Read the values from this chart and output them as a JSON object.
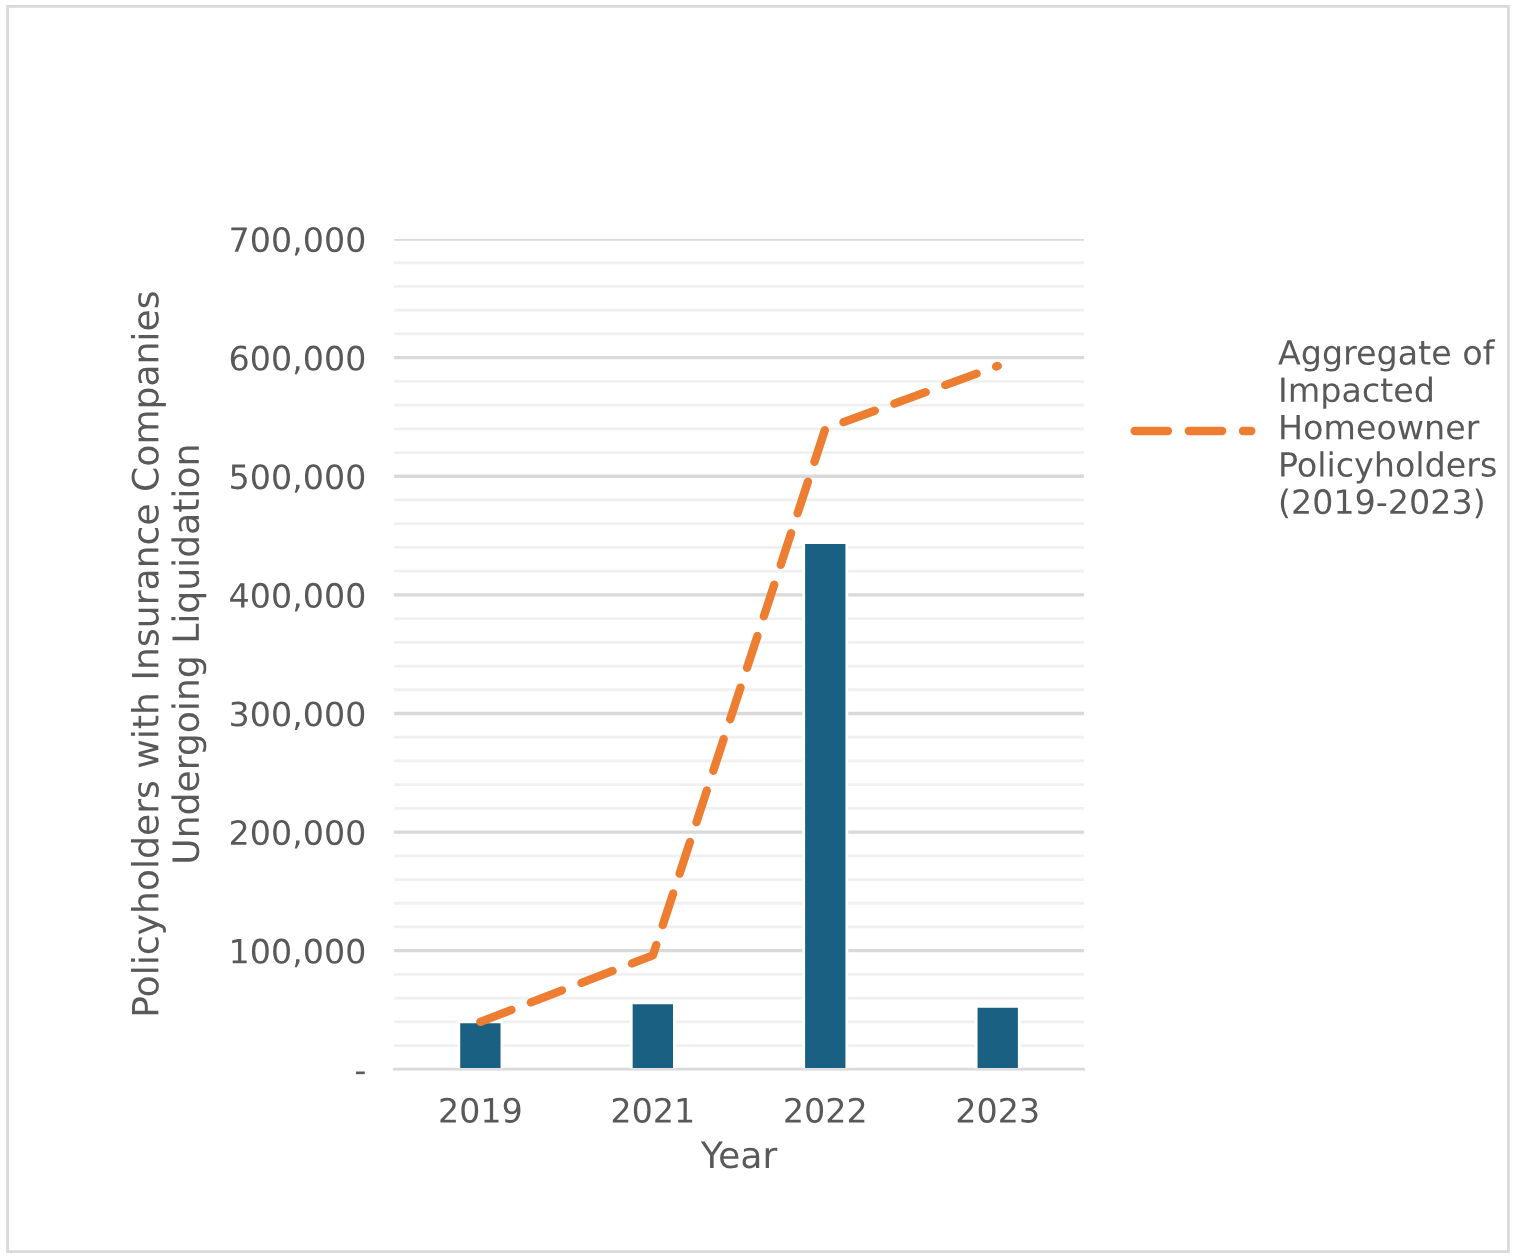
{
  "chart_data": {
    "type": "bar",
    "xlabel": "Year",
    "ylabel": "Policyholders with Insurance Companies\nUndergoing Liquidation",
    "categories": [
      "2019",
      "2021",
      "2022",
      "2023"
    ],
    "series": [
      {
        "color": "#1a6083",
        "values": [
          40000,
          56000,
          444000,
          53000
        ]
      },
      {
        "type": "line",
        "name": "Aggregate of\nImpacted\nHomeowner\nPolicyholders\n(2019-2023)",
        "color": "#ed7d31",
        "line_style": "dashed",
        "values": [
          40000,
          96000,
          540000,
          593000
        ]
      }
    ],
    "ylim": [
      0,
      700000
    ],
    "yticks": [
      {
        "value": 0,
        "label": "-"
      },
      {
        "value": 20000,
        "label": null
      },
      {
        "value": 40000,
        "label": null
      },
      {
        "value": 60000,
        "label": null
      },
      {
        "value": 80000,
        "label": null
      },
      {
        "value": 100000,
        "label": "100,000"
      },
      {
        "value": 120000,
        "label": null
      },
      {
        "value": 140000,
        "label": null
      },
      {
        "value": 160000,
        "label": null
      },
      {
        "value": 180000,
        "label": null
      },
      {
        "value": 200000,
        "label": "200,000"
      },
      {
        "value": 220000,
        "label": null
      },
      {
        "value": 240000,
        "label": null
      },
      {
        "value": 260000,
        "label": null
      },
      {
        "value": 280000,
        "label": null
      },
      {
        "value": 300000,
        "label": "300,000"
      },
      {
        "value": 320000,
        "label": null
      },
      {
        "value": 340000,
        "label": null
      },
      {
        "value": 360000,
        "label": null
      },
      {
        "value": 380000,
        "label": null
      },
      {
        "value": 400000,
        "label": "400,000"
      },
      {
        "value": 420000,
        "label": null
      },
      {
        "value": 440000,
        "label": null
      },
      {
        "value": 460000,
        "label": null
      },
      {
        "value": 480000,
        "label": null
      },
      {
        "value": 500000,
        "label": "500,000"
      },
      {
        "value": 520000,
        "label": null
      },
      {
        "value": 540000,
        "label": null
      },
      {
        "value": 560000,
        "label": null
      },
      {
        "value": 580000,
        "label": null
      },
      {
        "value": 600000,
        "label": "600,000"
      },
      {
        "value": 620000,
        "label": null
      },
      {
        "value": 640000,
        "label": null
      },
      {
        "value": 660000,
        "label": null
      },
      {
        "value": 680000,
        "label": null
      },
      {
        "value": 700000,
        "label": "700,000"
      }
    ],
    "grid": "y",
    "legend": "right"
  }
}
